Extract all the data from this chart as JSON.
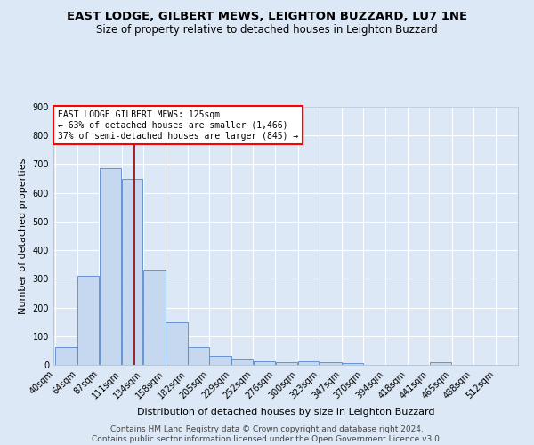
{
  "title": "EAST LODGE, GILBERT MEWS, LEIGHTON BUZZARD, LU7 1NE",
  "subtitle": "Size of property relative to detached houses in Leighton Buzzard",
  "xlabel": "Distribution of detached houses by size in Leighton Buzzard",
  "ylabel": "Number of detached properties",
  "footer_line1": "Contains HM Land Registry data © Crown copyright and database right 2024.",
  "footer_line2": "Contains public sector information licensed under the Open Government Licence v3.0.",
  "bin_labels": [
    "40sqm",
    "64sqm",
    "87sqm",
    "111sqm",
    "134sqm",
    "158sqm",
    "182sqm",
    "205sqm",
    "229sqm",
    "252sqm",
    "276sqm",
    "300sqm",
    "323sqm",
    "347sqm",
    "370sqm",
    "394sqm",
    "418sqm",
    "441sqm",
    "465sqm",
    "488sqm",
    "512sqm"
  ],
  "bin_edges": [
    40,
    64,
    87,
    111,
    134,
    158,
    182,
    205,
    229,
    252,
    276,
    300,
    323,
    347,
    370,
    394,
    418,
    441,
    465,
    488,
    512
  ],
  "bar_heights": [
    63,
    311,
    687,
    650,
    333,
    150,
    63,
    32,
    22,
    12,
    8,
    12,
    8,
    5,
    0,
    0,
    0,
    8,
    0,
    0,
    0
  ],
  "bar_color": "#c5d8f0",
  "bar_edge_color": "#5588cc",
  "red_line_x": 125,
  "annotation_text": "EAST LODGE GILBERT MEWS: 125sqm\n← 63% of detached houses are smaller (1,466)\n37% of semi-detached houses are larger (845) →",
  "annotation_box_color": "white",
  "annotation_box_edge_color": "red",
  "ylim": [
    0,
    900
  ],
  "yticks": [
    0,
    100,
    200,
    300,
    400,
    500,
    600,
    700,
    800,
    900
  ],
  "background_color": "#dce8f5",
  "grid_color": "white",
  "title_fontsize": 9.5,
  "subtitle_fontsize": 8.5,
  "axis_label_fontsize": 8,
  "tick_fontsize": 7,
  "annotation_fontsize": 7,
  "footer_fontsize": 6.5
}
